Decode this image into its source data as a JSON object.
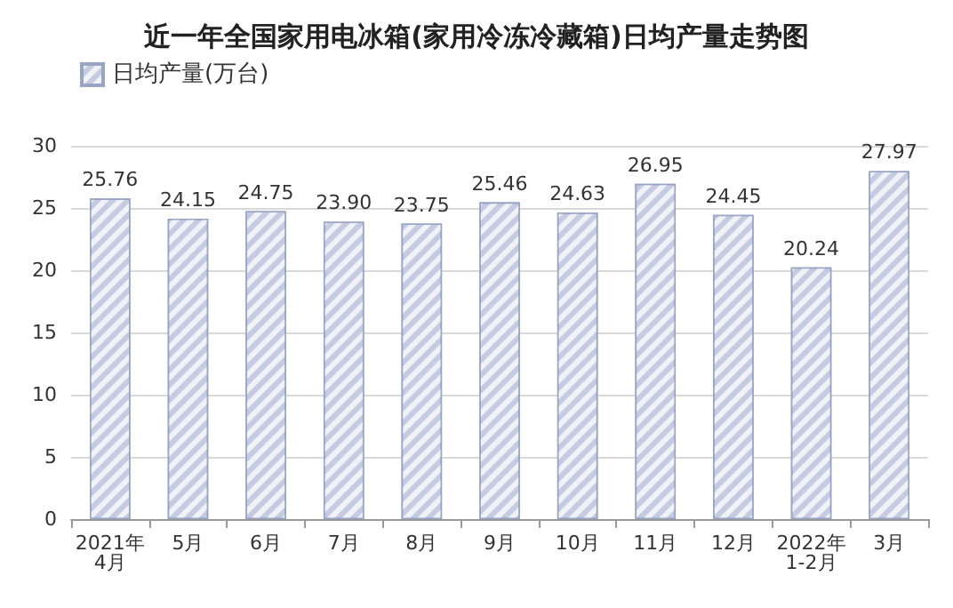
{
  "chart_data": {
    "type": "bar",
    "title": "近一年全国家用电冰箱(家用冷冻冷藏箱)日均产量走势图",
    "categories": [
      "2021年\n4月",
      "5月",
      "6月",
      "7月",
      "8月",
      "9月",
      "10月",
      "11月",
      "12月",
      "2022年\n1-2月",
      "3月"
    ],
    "series": [
      {
        "name": "日均产量(万台)",
        "color": "#c5cbe0",
        "values": [
          25.76,
          24.15,
          24.75,
          23.9,
          23.75,
          25.46,
          24.63,
          26.95,
          24.45,
          20.24,
          27.97
        ],
        "value_labels": [
          "25.76",
          "24.15",
          "24.75",
          "23.90",
          "23.75",
          "25.46",
          "24.63",
          "26.95",
          "24.45",
          "20.24",
          "27.97"
        ]
      }
    ],
    "ylim": [
      0,
      30
    ],
    "yticks": [
      0,
      5,
      10,
      15,
      20,
      25,
      30
    ],
    "grid": "y",
    "legend": "top left"
  }
}
